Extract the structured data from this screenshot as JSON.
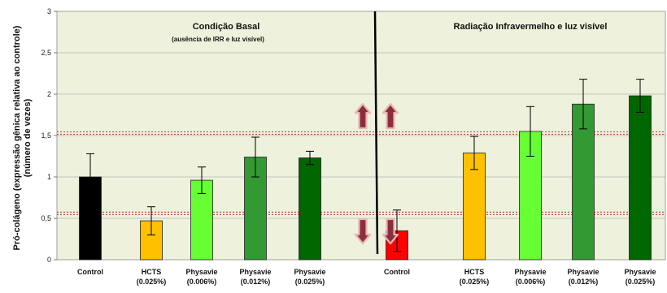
{
  "chart_data": {
    "type": "bar",
    "ylabel": "Pró-colágeno (expressão gênica relativa ao controle)",
    "ylabel2": "(número de vezes)",
    "ylim": [
      0,
      3
    ],
    "yticks": [
      "0",
      "0,5",
      "1",
      "1,5",
      "2",
      "2,5",
      "3"
    ],
    "grid": true,
    "panels": [
      {
        "title": "Condição Basal",
        "subtitle": "(ausência de IRR e luz visível)"
      },
      {
        "title": "Radiação Infravermelho e luz visível",
        "subtitle": ""
      }
    ],
    "categories": [
      {
        "line1": "Control",
        "line2": ""
      },
      {
        "line1": "HCTS",
        "line2": "(0.025%)"
      },
      {
        "line1": "Physavie",
        "line2": "(0.006%)"
      },
      {
        "line1": "Physavie",
        "line2": "(0.012%)"
      },
      {
        "line1": "Physavie",
        "line2": "(0.025%)"
      },
      {
        "line1": "Control",
        "line2": ""
      },
      {
        "line1": "HCTS",
        "line2": "(0.025%)"
      },
      {
        "line1": "Physavie",
        "line2": "(0.006%)"
      },
      {
        "line1": "Physavie",
        "line2": "(0.012%)"
      },
      {
        "line1": "Physavie",
        "line2": "(0.025%)"
      }
    ],
    "values": [
      1.0,
      0.47,
      0.96,
      1.24,
      1.23,
      0.35,
      1.29,
      1.55,
      1.88,
      1.98
    ],
    "errors": [
      0.28,
      0.17,
      0.16,
      0.24,
      0.08,
      0.25,
      0.2,
      0.3,
      0.3,
      0.2
    ],
    "colors": [
      "#000000",
      "#FFC000",
      "#66FF33",
      "#339933",
      "#006600",
      "#FF0000",
      "#FFC000",
      "#66FF33",
      "#339933",
      "#006600"
    ],
    "reference_lines": [
      1.53,
      0.56
    ],
    "reference_line_color": "#C0504D",
    "plot_background": "#EEF1DC",
    "arrow_color": "#8B2E3A"
  }
}
